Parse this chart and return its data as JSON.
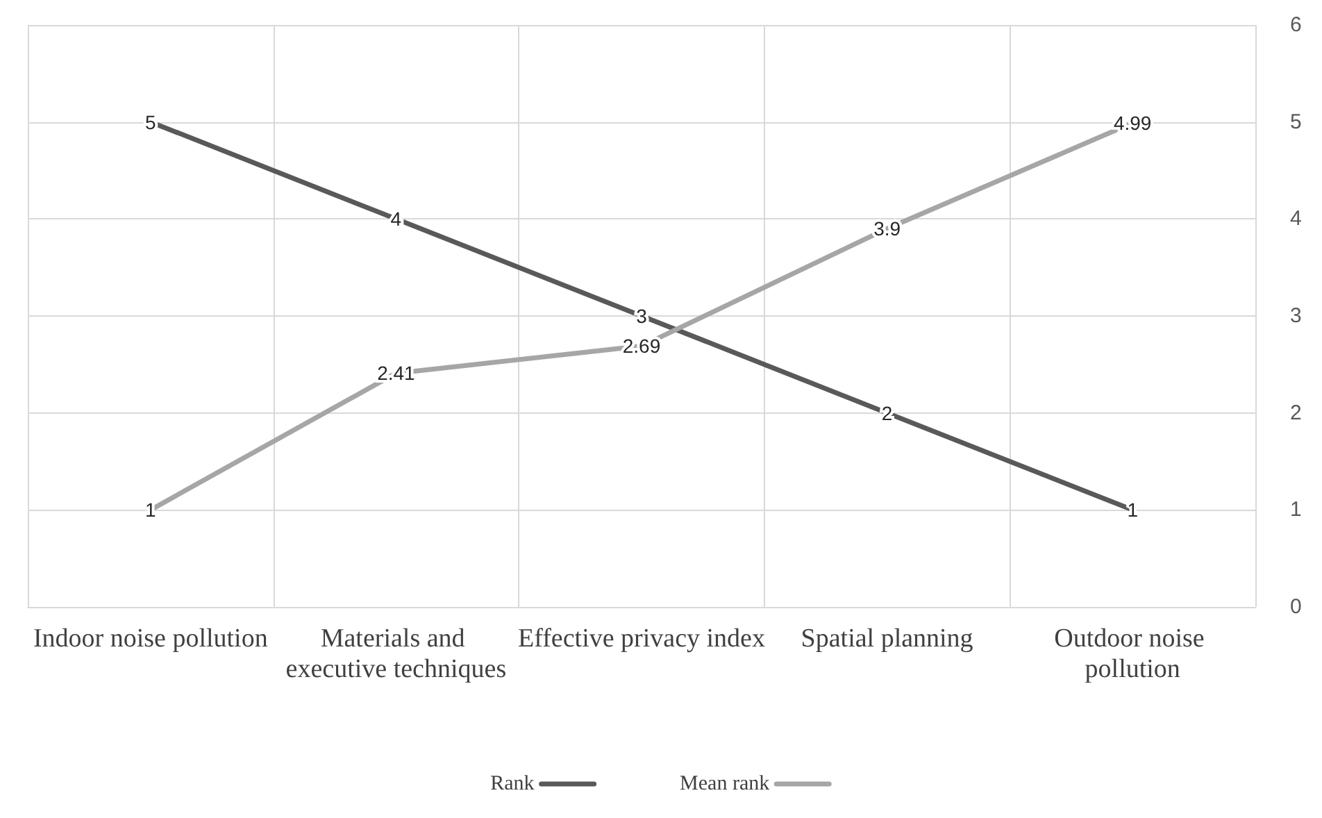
{
  "chart_data": {
    "type": "line",
    "categories": [
      "Indoor noise pollution",
      "Materials and executive techniques",
      "Effective privacy index",
      "Spatial planning",
      "Outdoor noise pollution"
    ],
    "series": [
      {
        "name": "Rank",
        "color": "#595959",
        "values": [
          5,
          4,
          3,
          2,
          1
        ]
      },
      {
        "name": "Mean rank",
        "color": "#a6a6a6",
        "values": [
          1,
          2.41,
          2.69,
          3.9,
          4.99
        ]
      }
    ],
    "ylim": [
      0,
      6
    ],
    "yticks": [
      0,
      1,
      2,
      3,
      4,
      5,
      6
    ],
    "grid": true,
    "legend": "bottom",
    "data_labels": true,
    "marker": "none",
    "line_style": "solid"
  }
}
